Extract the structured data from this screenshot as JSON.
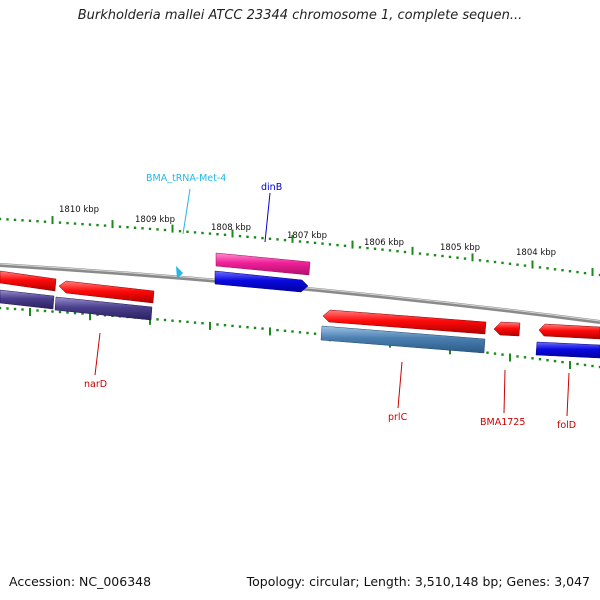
{
  "title": "Burkholderia mallei ATCC 23344 chromosome 1, complete sequen...",
  "footer": {
    "accession": "Accession: NC_006348",
    "topology": "Topology: circular; Length: 3,510,148 bp; Genes: 3,047"
  },
  "colors": {
    "backbone": "#8a8a8a",
    "ticks": "#1a8a1a",
    "red": "#ff0a0a",
    "purple": "#4a3f8c",
    "pink": "#f0209a",
    "blue": "#0a0ae0",
    "steel": "#4a7fb0",
    "trna": "#27b6e6"
  },
  "scale": {
    "labels": [
      "1810 kbp",
      "1809 kbp",
      "1808 kbp",
      "1807 kbp",
      "1806 kbp",
      "1805 kbp",
      "1804 kbp"
    ]
  },
  "genes": [
    {
      "label": "narD",
      "color": "#cc0000"
    },
    {
      "label": "BMA_tRNA-Met-4",
      "color": "#27b6e6"
    },
    {
      "label": "dinB",
      "color": "#0000cc"
    },
    {
      "label": "prlC",
      "color": "#cc0000"
    },
    {
      "label": "BMA1725",
      "color": "#cc0000"
    },
    {
      "label": "folD",
      "color": "#cc0000"
    }
  ]
}
